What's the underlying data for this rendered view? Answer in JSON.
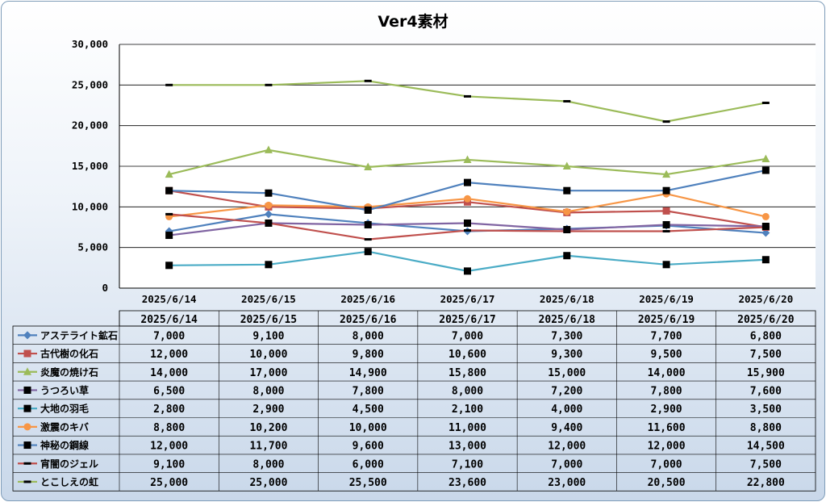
{
  "chart_data": {
    "type": "line",
    "title": "Ver4素材",
    "ylim": [
      0,
      30000
    ],
    "y_ticks": [
      "0",
      "5,000",
      "10,000",
      "15,000",
      "20,000",
      "25,000",
      "30,000"
    ],
    "y_tick_values": [
      0,
      5000,
      10000,
      15000,
      20000,
      25000,
      30000
    ],
    "grid": true,
    "legend": "data-table",
    "categories": [
      "2025/6/14",
      "2025/6/15",
      "2025/6/16",
      "2025/6/17",
      "2025/6/18",
      "2025/6/19",
      "2025/6/20"
    ],
    "series": [
      {
        "name": "アステライト鉱石",
        "color": "#4f81bd",
        "marker": "diamond",
        "marker_color": "#4f81bd",
        "values": [
          7000,
          9100,
          8000,
          7000,
          7300,
          7700,
          6800
        ],
        "labels": [
          "7,000",
          "9,100",
          "8,000",
          "7,000",
          "7,300",
          "7,700",
          "6,800"
        ]
      },
      {
        "name": "古代樹の化石",
        "color": "#c0504d",
        "marker": "square",
        "marker_color": "#c0504d",
        "values": [
          12000,
          10000,
          9800,
          10600,
          9300,
          9500,
          7500
        ],
        "labels": [
          "12,000",
          "10,000",
          "9,800",
          "10,600",
          "9,300",
          "9,500",
          "7,500"
        ]
      },
      {
        "name": "炎魔の焼け石",
        "color": "#9bbb59",
        "marker": "triangle",
        "marker_color": "#9bbb59",
        "values": [
          14000,
          17000,
          14900,
          15800,
          15000,
          14000,
          15900
        ],
        "labels": [
          "14,000",
          "17,000",
          "14,900",
          "15,800",
          "15,000",
          "14,000",
          "15,900"
        ]
      },
      {
        "name": "うつろい草",
        "color": "#8064a2",
        "marker": "square",
        "marker_color": "#000000",
        "values": [
          6500,
          8000,
          7800,
          8000,
          7200,
          7800,
          7600
        ],
        "labels": [
          "6,500",
          "8,000",
          "7,800",
          "8,000",
          "7,200",
          "7,800",
          "7,600"
        ]
      },
      {
        "name": "大地の羽毛",
        "color": "#4bacc6",
        "marker": "square",
        "marker_color": "#000000",
        "values": [
          2800,
          2900,
          4500,
          2100,
          4000,
          2900,
          3500
        ],
        "labels": [
          "2,800",
          "2,900",
          "4,500",
          "2,100",
          "4,000",
          "2,900",
          "3,500"
        ]
      },
      {
        "name": "激震のキバ",
        "color": "#f79646",
        "marker": "circle",
        "marker_color": "#f79646",
        "values": [
          8800,
          10200,
          10000,
          11000,
          9400,
          11600,
          8800
        ],
        "labels": [
          "8,800",
          "10,200",
          "10,000",
          "11,000",
          "9,400",
          "11,600",
          "8,800"
        ]
      },
      {
        "name": "神秘の鋼線",
        "color": "#4f81bd",
        "marker": "square",
        "marker_color": "#000000",
        "values": [
          12000,
          11700,
          9600,
          13000,
          12000,
          12000,
          14500
        ],
        "labels": [
          "12,000",
          "11,700",
          "9,600",
          "13,000",
          "12,000",
          "12,000",
          "14,500"
        ]
      },
      {
        "name": "宵闇のジェル",
        "color": "#c0504d",
        "marker": "dash",
        "marker_color": "#000000",
        "values": [
          9100,
          8000,
          6000,
          7100,
          7000,
          7000,
          7500
        ],
        "labels": [
          "9,100",
          "8,000",
          "6,000",
          "7,100",
          "7,000",
          "7,000",
          "7,500"
        ]
      },
      {
        "name": "とこしえの虹",
        "color": "#9bbb59",
        "marker": "dash",
        "marker_color": "#000000",
        "values": [
          25000,
          25000,
          25500,
          23600,
          23000,
          20500,
          22800
        ],
        "labels": [
          "25,000",
          "25,000",
          "25,500",
          "23,600",
          "23,000",
          "20,500",
          "22,800"
        ]
      }
    ]
  }
}
